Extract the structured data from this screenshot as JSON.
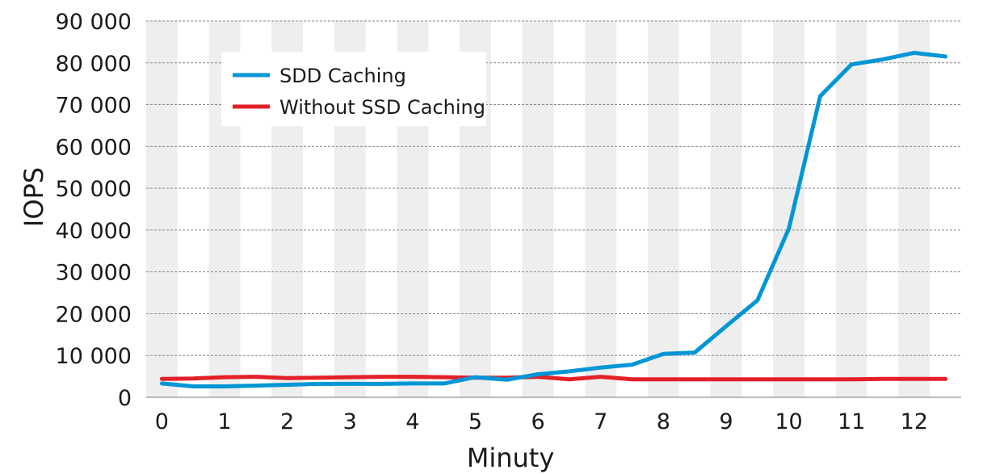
{
  "chart_data": {
    "type": "line",
    "title": "",
    "xlabel": "Minuty",
    "ylabel": "IOPS",
    "xlim": [
      -0.25,
      12.75
    ],
    "ylim": [
      0,
      90000
    ],
    "x_ticks": [
      0,
      1,
      2,
      3,
      4,
      5,
      6,
      7,
      8,
      9,
      10,
      11,
      12
    ],
    "x_tick_labels": [
      "0",
      "1",
      "2",
      "3",
      "4",
      "5",
      "6",
      "7",
      "8",
      "9",
      "10",
      "11",
      "12"
    ],
    "y_ticks": [
      0,
      10000,
      20000,
      30000,
      40000,
      50000,
      60000,
      70000,
      80000,
      90000
    ],
    "y_tick_labels": [
      "0",
      "10 000",
      "20 000",
      "30 000",
      "40 000",
      "50 000",
      "60 000",
      "70 000",
      "80 000",
      "90 000"
    ],
    "grid": true,
    "background_stripes": "alternating gray columns",
    "legend_position": "top-left",
    "series": [
      {
        "name": "SDD Caching",
        "color": "#0096d6",
        "x": [
          0,
          0.5,
          1,
          1.5,
          2,
          2.5,
          3,
          3.5,
          4,
          4.5,
          5,
          5.5,
          6,
          6.5,
          7,
          7.5,
          8,
          8.5,
          9,
          9.5,
          10,
          10.5,
          11,
          11.5,
          12,
          12.5
        ],
        "values": [
          3300,
          2600,
          2600,
          2800,
          3000,
          3200,
          3200,
          3200,
          3300,
          3300,
          4800,
          4200,
          5500,
          6200,
          7100,
          7800,
          10400,
          10700,
          17000,
          23200,
          40300,
          72000,
          79600,
          80800,
          82400,
          81500
        ]
      },
      {
        "name": "Without SSD Caching",
        "color": "#e32028",
        "x": [
          0,
          0.5,
          1,
          1.5,
          2,
          2.5,
          3,
          3.5,
          4,
          4.5,
          5,
          5.5,
          6,
          6.5,
          7,
          7.5,
          8,
          8.5,
          9,
          9.5,
          10,
          10.5,
          11,
          11.5,
          12,
          12.5
        ],
        "values": [
          4400,
          4500,
          4800,
          4900,
          4600,
          4700,
          4800,
          4900,
          4900,
          4800,
          4700,
          4700,
          4900,
          4300,
          4900,
          4300,
          4300,
          4300,
          4300,
          4300,
          4300,
          4300,
          4300,
          4400,
          4400,
          4400
        ]
      }
    ]
  }
}
